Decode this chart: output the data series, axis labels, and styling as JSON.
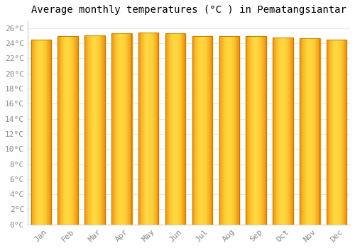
{
  "title": "Average monthly temperatures (°C ) in Pematangsiantar",
  "months": [
    "Jan",
    "Feb",
    "Mar",
    "Apr",
    "May",
    "Jun",
    "Jul",
    "Aug",
    "Sep",
    "Oct",
    "Nov",
    "Dec"
  ],
  "temperatures": [
    24.5,
    24.9,
    25.0,
    25.3,
    25.4,
    25.3,
    24.9,
    24.9,
    24.9,
    24.8,
    24.7,
    24.5
  ],
  "bar_center_color": "#FFD840",
  "bar_edge_color": "#F0920A",
  "bar_border_color": "#B87A00",
  "background_color": "#FFFFFF",
  "grid_color": "#E8E8E8",
  "ylim": [
    0,
    27
  ],
  "yticks": [
    0,
    2,
    4,
    6,
    8,
    10,
    12,
    14,
    16,
    18,
    20,
    22,
    24,
    26
  ],
  "title_fontsize": 10,
  "tick_fontsize": 8,
  "font_family": "monospace",
  "bar_width": 0.75
}
